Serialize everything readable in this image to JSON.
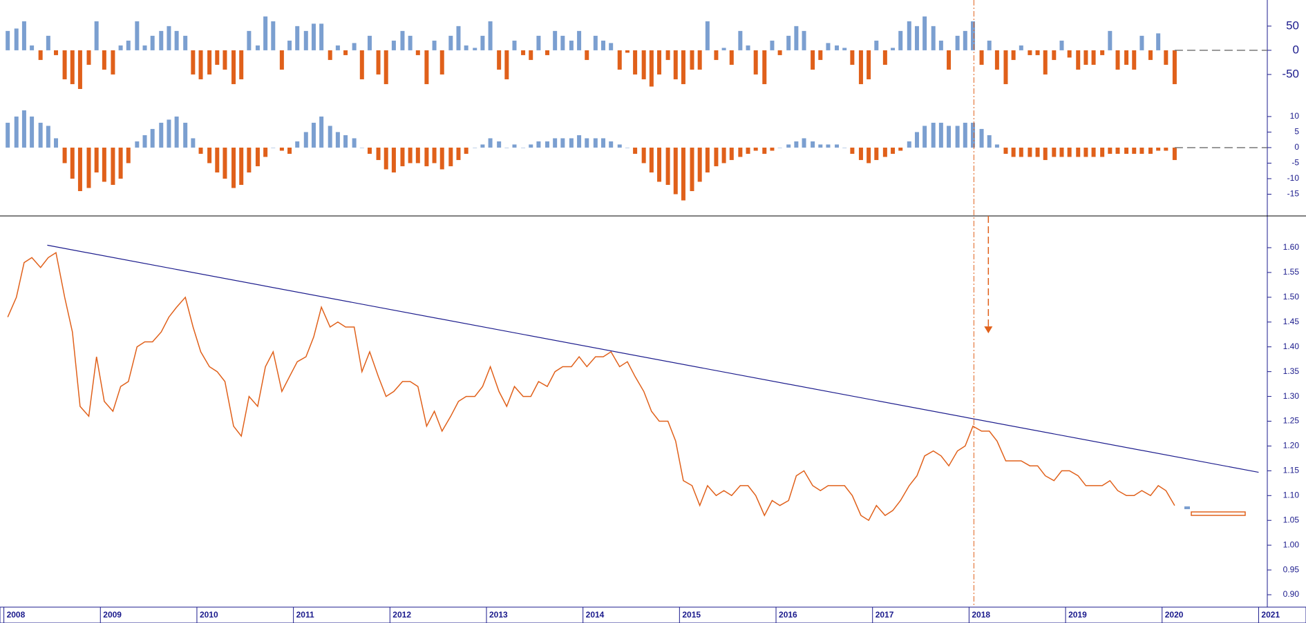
{
  "chart_data": [
    {
      "type": "bar",
      "color": "#7b9fd0",
      "negative_color": "#e0601a",
      "ylim": [
        -110,
        104
      ],
      "yticks": [
        50,
        0,
        -50
      ],
      "x": [
        2008.04,
        2008.13,
        2008.21,
        2008.29,
        2008.38,
        2008.46,
        2008.54,
        2008.63,
        2008.71,
        2008.79,
        2008.88,
        2008.96,
        2009.04,
        2009.13,
        2009.21,
        2009.29,
        2009.38,
        2009.46,
        2009.54,
        2009.63,
        2009.71,
        2009.79,
        2009.88,
        2009.96,
        2010.04,
        2010.13,
        2010.21,
        2010.29,
        2010.38,
        2010.46,
        2010.54,
        2010.63,
        2010.71,
        2010.79,
        2010.88,
        2010.96,
        2011.04,
        2011.13,
        2011.21,
        2011.29,
        2011.38,
        2011.46,
        2011.54,
        2011.63,
        2011.71,
        2011.79,
        2011.88,
        2011.96,
        2012.04,
        2012.13,
        2012.21,
        2012.29,
        2012.38,
        2012.46,
        2012.54,
        2012.63,
        2012.71,
        2012.79,
        2012.88,
        2012.96,
        2013.04,
        2013.13,
        2013.21,
        2013.29,
        2013.38,
        2013.46,
        2013.54,
        2013.63,
        2013.71,
        2013.79,
        2013.88,
        2013.96,
        2014.04,
        2014.13,
        2014.21,
        2014.29,
        2014.38,
        2014.46,
        2014.54,
        2014.63,
        2014.71,
        2014.79,
        2014.88,
        2014.96,
        2015.04,
        2015.13,
        2015.21,
        2015.29,
        2015.38,
        2015.46,
        2015.54,
        2015.63,
        2015.71,
        2015.79,
        2015.88,
        2015.96,
        2016.04,
        2016.13,
        2016.21,
        2016.29,
        2016.38,
        2016.46,
        2016.54,
        2016.63,
        2016.71,
        2016.79,
        2016.88,
        2016.96,
        2017.04,
        2017.13,
        2017.21,
        2017.29,
        2017.38,
        2017.46,
        2017.54,
        2017.63,
        2017.71,
        2017.79,
        2017.88,
        2017.96,
        2018.04,
        2018.13,
        2018.21,
        2018.29,
        2018.38,
        2018.46,
        2018.54,
        2018.63,
        2018.71,
        2018.79,
        2018.88,
        2018.96,
        2019.04,
        2019.13,
        2019.21,
        2019.29,
        2019.38,
        2019.46,
        2019.54,
        2019.63,
        2019.71,
        2019.79,
        2019.88,
        2019.96,
        2020.04,
        2020.13
      ],
      "values": [
        40,
        45,
        60,
        10,
        -20,
        30,
        -10,
        -60,
        -70,
        -80,
        -30,
        60,
        -40,
        -50,
        10,
        20,
        60,
        10,
        30,
        40,
        50,
        40,
        30,
        -50,
        -60,
        -50,
        -30,
        -40,
        -70,
        -60,
        40,
        10,
        70,
        60,
        -40,
        20,
        50,
        40,
        55,
        55,
        -20,
        10,
        -10,
        15,
        -60,
        30,
        -50,
        -70,
        20,
        40,
        30,
        -10,
        -70,
        20,
        -50,
        30,
        50,
        10,
        5,
        30,
        60,
        -40,
        -60,
        20,
        -10,
        -20,
        30,
        -10,
        40,
        30,
        20,
        40,
        -20,
        30,
        20,
        15,
        -40,
        -5,
        -50,
        -60,
        -75,
        -50,
        -20,
        -60,
        -70,
        -40,
        -40,
        60,
        -20,
        5,
        -30,
        40,
        10,
        -50,
        -70,
        20,
        -10,
        30,
        50,
        40,
        -40,
        -20,
        15,
        10,
        5,
        -30,
        -70,
        -60,
        20,
        -30,
        5,
        40,
        60,
        50,
        70,
        50,
        20,
        -40,
        30,
        40,
        60,
        -30,
        20,
        -40,
        -70,
        -20,
        10,
        -10,
        -10,
        -50,
        -20,
        20,
        -15,
        -40,
        -30,
        -30,
        -10,
        40,
        -40,
        -30,
        -40,
        30,
        -20,
        35,
        -30,
        -70
      ]
    },
    {
      "type": "bar",
      "color": "#7b9fd0",
      "negative_color": "#e0601a",
      "ylim": [
        -22,
        14.2
      ],
      "yticks": [
        10,
        5,
        0,
        -5,
        -10,
        -15
      ],
      "x": [
        2008.04,
        2008.13,
        2008.21,
        2008.29,
        2008.38,
        2008.46,
        2008.54,
        2008.63,
        2008.71,
        2008.79,
        2008.88,
        2008.96,
        2009.04,
        2009.13,
        2009.21,
        2009.29,
        2009.38,
        2009.46,
        2009.54,
        2009.63,
        2009.71,
        2009.79,
        2009.88,
        2009.96,
        2010.04,
        2010.13,
        2010.21,
        2010.29,
        2010.38,
        2010.46,
        2010.54,
        2010.63,
        2010.71,
        2010.79,
        2010.88,
        2010.96,
        2011.04,
        2011.13,
        2011.21,
        2011.29,
        2011.38,
        2011.46,
        2011.54,
        2011.63,
        2011.71,
        2011.79,
        2011.88,
        2011.96,
        2012.04,
        2012.13,
        2012.21,
        2012.29,
        2012.38,
        2012.46,
        2012.54,
        2012.63,
        2012.71,
        2012.79,
        2012.88,
        2012.96,
        2013.04,
        2013.13,
        2013.21,
        2013.29,
        2013.38,
        2013.46,
        2013.54,
        2013.63,
        2013.71,
        2013.79,
        2013.88,
        2013.96,
        2014.04,
        2014.13,
        2014.21,
        2014.29,
        2014.38,
        2014.46,
        2014.54,
        2014.63,
        2014.71,
        2014.79,
        2014.88,
        2014.96,
        2015.04,
        2015.13,
        2015.21,
        2015.29,
        2015.38,
        2015.46,
        2015.54,
        2015.63,
        2015.71,
        2015.79,
        2015.88,
        2015.96,
        2016.04,
        2016.13,
        2016.21,
        2016.29,
        2016.38,
        2016.46,
        2016.54,
        2016.63,
        2016.71,
        2016.79,
        2016.88,
        2016.96,
        2017.04,
        2017.13,
        2017.21,
        2017.29,
        2017.38,
        2017.46,
        2017.54,
        2017.63,
        2017.71,
        2017.79,
        2017.88,
        2017.96,
        2018.04,
        2018.13,
        2018.21,
        2018.29,
        2018.38,
        2018.46,
        2018.54,
        2018.63,
        2018.71,
        2018.79,
        2018.88,
        2018.96,
        2019.04,
        2019.13,
        2019.21,
        2019.29,
        2019.38,
        2019.46,
        2019.54,
        2019.63,
        2019.71,
        2019.79,
        2019.88,
        2019.96,
        2020.04,
        2020.13
      ],
      "values": [
        8,
        10,
        12,
        10,
        8,
        7,
        3,
        -5,
        -10,
        -14,
        -13,
        -8,
        -11,
        -12,
        -10,
        -5,
        2,
        4,
        6,
        8,
        9,
        10,
        8,
        3,
        -2,
        -5,
        -8,
        -10,
        -13,
        -12,
        -8,
        -6,
        -3,
        0,
        -1,
        -2,
        2,
        5,
        8,
        10,
        7,
        5,
        4,
        3,
        0,
        -2,
        -4,
        -7,
        -8,
        -6,
        -5,
        -5,
        -6,
        -5,
        -7,
        -6,
        -4,
        -2,
        0,
        1,
        3,
        2,
        0,
        1,
        0,
        1,
        2,
        2,
        3,
        3,
        3,
        4,
        3,
        3,
        3,
        2,
        1,
        0,
        -2,
        -5,
        -8,
        -11,
        -12,
        -15,
        -17,
        -14,
        -11,
        -8,
        -6,
        -5,
        -4,
        -3,
        -2,
        -1,
        -2,
        -1,
        0,
        1,
        2,
        3,
        2,
        1,
        1,
        1,
        0,
        -2,
        -4,
        -5,
        -4,
        -3,
        -2,
        -1,
        2,
        5,
        7,
        8,
        8,
        7,
        7,
        8,
        8,
        6,
        4,
        1,
        -2,
        -3,
        -3,
        -3,
        -3,
        -4,
        -3,
        -3,
        -3,
        -3,
        -3,
        -3,
        -3,
        -2,
        -2,
        -2,
        -2,
        -2,
        -2,
        -1,
        -1,
        -4
      ]
    },
    {
      "type": "line",
      "color": "#e0601a",
      "trendline_color": "#1a1a8c",
      "xlim": [
        2007.96,
        2021.09
      ],
      "xticks": [
        2008,
        2009,
        2010,
        2011,
        2012,
        2013,
        2014,
        2015,
        2016,
        2017,
        2018,
        2019,
        2020,
        2021
      ],
      "ylim": [
        0.875,
        1.664
      ],
      "yticks": [
        {
          "value": 1.6,
          "label": "1.60"
        },
        {
          "value": 1.55,
          "label": "1.55"
        },
        {
          "value": 1.5,
          "label": "1.50"
        },
        {
          "value": 1.45,
          "label": "1.45"
        },
        {
          "value": 1.4,
          "label": "1.40"
        },
        {
          "value": 1.35,
          "label": "1.35"
        },
        {
          "value": 1.3,
          "label": "1.30"
        },
        {
          "value": 1.25,
          "label": "1.25"
        },
        {
          "value": 1.2,
          "label": "1.20"
        },
        {
          "value": 1.15,
          "label": "1.15"
        },
        {
          "value": 1.1,
          "label": "1.10"
        },
        {
          "value": 1.05,
          "label": "1.05"
        },
        {
          "value": 1.0,
          "label": "1.00"
        },
        {
          "value": 0.95,
          "label": "0.95"
        },
        {
          "value": 0.9,
          "label": "0.90"
        }
      ],
      "trendline": {
        "x": [
          2008.45,
          2021.0
        ],
        "values": [
          1.605,
          1.147
        ]
      },
      "vline": 2018.05,
      "arrow": {
        "x": 2018.2,
        "value": 1.43
      },
      "x": [
        2008.04,
        2008.13,
        2008.21,
        2008.29,
        2008.38,
        2008.46,
        2008.54,
        2008.63,
        2008.71,
        2008.79,
        2008.88,
        2008.96,
        2009.04,
        2009.13,
        2009.21,
        2009.29,
        2009.38,
        2009.46,
        2009.54,
        2009.63,
        2009.71,
        2009.79,
        2009.88,
        2009.96,
        2010.04,
        2010.13,
        2010.21,
        2010.29,
        2010.38,
        2010.46,
        2010.54,
        2010.63,
        2010.71,
        2010.79,
        2010.88,
        2010.96,
        2011.04,
        2011.13,
        2011.21,
        2011.29,
        2011.38,
        2011.46,
        2011.54,
        2011.63,
        2011.71,
        2011.79,
        2011.88,
        2011.96,
        2012.04,
        2012.13,
        2012.21,
        2012.29,
        2012.38,
        2012.46,
        2012.54,
        2012.63,
        2012.71,
        2012.79,
        2012.88,
        2012.96,
        2013.04,
        2013.13,
        2013.21,
        2013.29,
        2013.38,
        2013.46,
        2013.54,
        2013.63,
        2013.71,
        2013.79,
        2013.88,
        2013.96,
        2014.04,
        2014.13,
        2014.21,
        2014.29,
        2014.38,
        2014.46,
        2014.54,
        2014.63,
        2014.71,
        2014.79,
        2014.88,
        2014.96,
        2015.04,
        2015.13,
        2015.21,
        2015.29,
        2015.38,
        2015.46,
        2015.54,
        2015.63,
        2015.71,
        2015.79,
        2015.88,
        2015.96,
        2016.04,
        2016.13,
        2016.21,
        2016.29,
        2016.38,
        2016.46,
        2016.54,
        2016.63,
        2016.71,
        2016.79,
        2016.88,
        2016.96,
        2017.04,
        2017.13,
        2017.21,
        2017.29,
        2017.38,
        2017.46,
        2017.54,
        2017.63,
        2017.71,
        2017.79,
        2017.88,
        2017.96,
        2018.04,
        2018.13,
        2018.21,
        2018.29,
        2018.38,
        2018.46,
        2018.54,
        2018.63,
        2018.71,
        2018.79,
        2018.88,
        2018.96,
        2019.04,
        2019.13,
        2019.21,
        2019.29,
        2019.38,
        2019.46,
        2019.54,
        2019.63,
        2019.71,
        2019.79,
        2019.88,
        2019.96,
        2020.04,
        2020.13
      ],
      "values": [
        1.46,
        1.5,
        1.57,
        1.58,
        1.56,
        1.58,
        1.59,
        1.5,
        1.43,
        1.28,
        1.26,
        1.38,
        1.29,
        1.27,
        1.32,
        1.33,
        1.4,
        1.41,
        1.41,
        1.43,
        1.46,
        1.48,
        1.5,
        1.44,
        1.39,
        1.36,
        1.35,
        1.33,
        1.24,
        1.22,
        1.3,
        1.28,
        1.36,
        1.39,
        1.31,
        1.34,
        1.37,
        1.38,
        1.42,
        1.48,
        1.44,
        1.45,
        1.44,
        1.44,
        1.35,
        1.39,
        1.34,
        1.3,
        1.31,
        1.33,
        1.33,
        1.32,
        1.24,
        1.27,
        1.23,
        1.26,
        1.29,
        1.3,
        1.3,
        1.32,
        1.36,
        1.31,
        1.28,
        1.32,
        1.3,
        1.3,
        1.33,
        1.32,
        1.35,
        1.36,
        1.36,
        1.38,
        1.36,
        1.38,
        1.38,
        1.39,
        1.36,
        1.37,
        1.34,
        1.31,
        1.27,
        1.25,
        1.25,
        1.21,
        1.13,
        1.12,
        1.08,
        1.12,
        1.1,
        1.11,
        1.1,
        1.12,
        1.12,
        1.1,
        1.06,
        1.09,
        1.08,
        1.09,
        1.14,
        1.15,
        1.12,
        1.11,
        1.12,
        1.12,
        1.12,
        1.1,
        1.06,
        1.05,
        1.08,
        1.06,
        1.07,
        1.09,
        1.12,
        1.14,
        1.18,
        1.19,
        1.18,
        1.16,
        1.19,
        1.2,
        1.24,
        1.23,
        1.23,
        1.21,
        1.17,
        1.17,
        1.17,
        1.16,
        1.16,
        1.14,
        1.13,
        1.15,
        1.15,
        1.14,
        1.12,
        1.12,
        1.12,
        1.13,
        1.11,
        1.1,
        1.1,
        1.11,
        1.1,
        1.12,
        1.11,
        1.08
      ]
    }
  ]
}
